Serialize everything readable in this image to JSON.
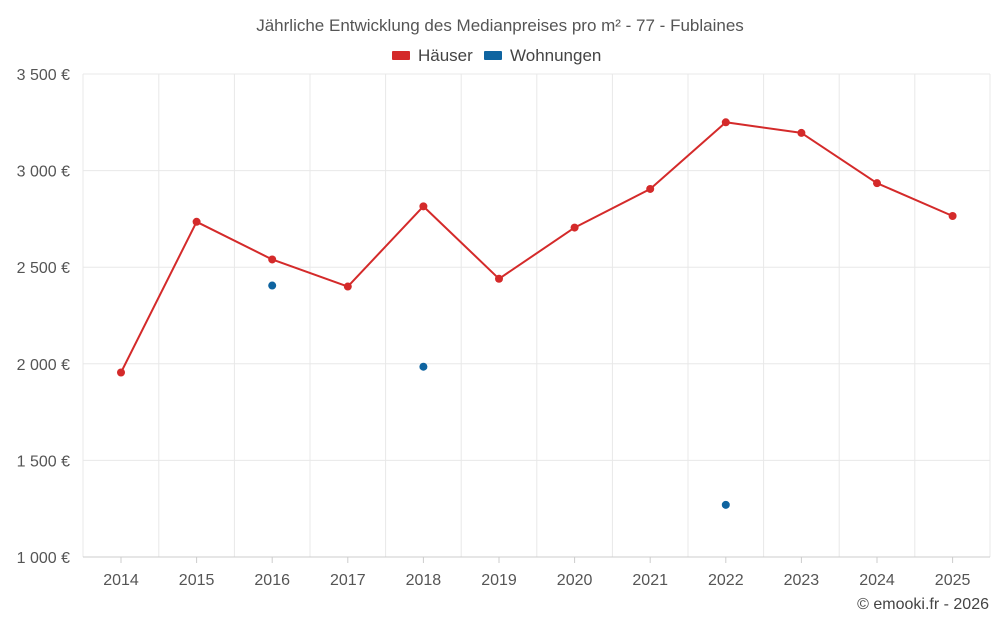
{
  "chart_data": {
    "type": "line",
    "title": "Jährliche Entwicklung des Medianpreises pro m² - 77 - Fublaines",
    "x": [
      "2014",
      "2015",
      "2016",
      "2017",
      "2018",
      "2019",
      "2020",
      "2021",
      "2022",
      "2023",
      "2024",
      "2025"
    ],
    "y_ticks": [
      "1 000 €",
      "1 500 €",
      "2 000 €",
      "2 500 €",
      "3 000 €",
      "3 500 €"
    ],
    "ylim": [
      1000,
      3500
    ],
    "grid": true,
    "legend_position": "top-center",
    "series": [
      {
        "name": "Häuser",
        "color": "#d42a2a",
        "style": "line-with-markers",
        "values": [
          1955,
          2735,
          2540,
          2400,
          2815,
          2440,
          2705,
          2905,
          3250,
          3195,
          2935,
          2765
        ]
      },
      {
        "name": "Wohnungen",
        "color": "#0f64a0",
        "style": "markers-only",
        "values": [
          null,
          null,
          2405,
          null,
          1985,
          null,
          null,
          null,
          1270,
          null,
          null,
          null
        ]
      }
    ]
  },
  "credit": "© emooki.fr - 2026"
}
